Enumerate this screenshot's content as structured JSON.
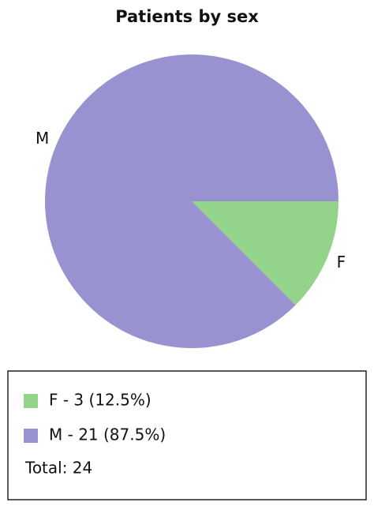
{
  "chart_data": {
    "type": "pie",
    "title": "Patients by sex",
    "categories": [
      "F",
      "M"
    ],
    "values": [
      3,
      21
    ],
    "colors": [
      "#94d48a",
      "#9893d0"
    ],
    "value_labels": [
      "F - 3 (12.5%)",
      "M - 21 (87.5%)"
    ],
    "total_label": "Total: 24"
  }
}
